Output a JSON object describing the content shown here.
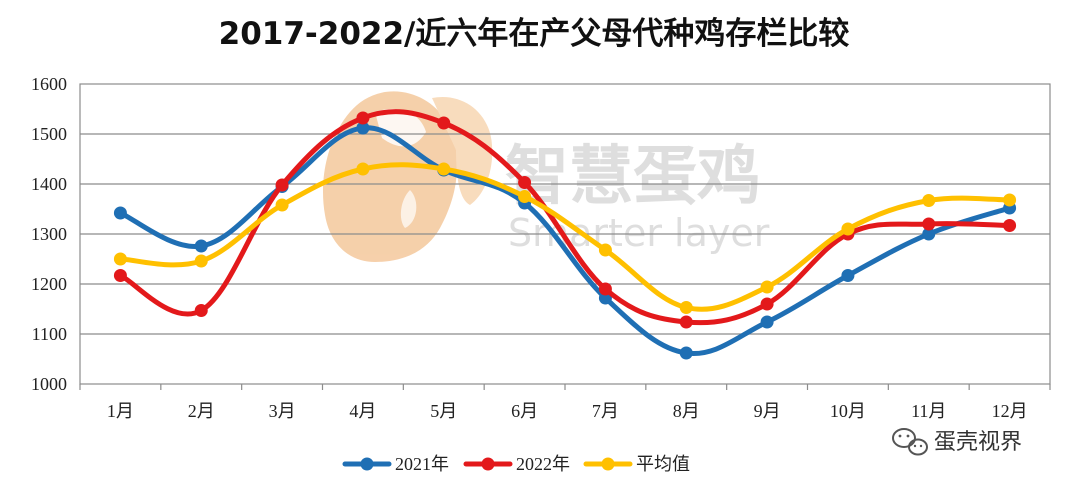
{
  "chart_data": {
    "type": "line",
    "title": "2017-2022/近六年在产父母代种鸡存栏比较",
    "categories": [
      "1月",
      "2月",
      "3月",
      "4月",
      "5月",
      "6月",
      "7月",
      "8月",
      "9月",
      "10月",
      "11月",
      "12月"
    ],
    "ylim": [
      1000,
      1600
    ],
    "yticks": [
      1000,
      1100,
      1200,
      1300,
      1400,
      1500,
      1600
    ],
    "ytick_labels": [
      "1000",
      "1100",
      "1200",
      "1300",
      "1400",
      "1500",
      "1600"
    ],
    "grid": true,
    "legend_position": "bottom",
    "series": [
      {
        "name": "2021年",
        "color": "#1f6fb4",
        "values": [
          1342,
          1276,
          1395,
          1512,
          1428,
          1362,
          1172,
          1062,
          1124,
          1217,
          1300,
          1352
        ]
      },
      {
        "name": "2022年",
        "color": "#e3191b",
        "values": [
          1217,
          1147,
          1398,
          1532,
          1522,
          1403,
          1190,
          1124,
          1160,
          1300,
          1320,
          1317
        ]
      },
      {
        "name": "平均值",
        "color": "#ffc000",
        "values": [
          1250,
          1246,
          1358,
          1430,
          1430,
          1375,
          1268,
          1153,
          1194,
          1310,
          1367,
          1368
        ]
      }
    ]
  },
  "watermark": {
    "cn": "智慧蛋鸡",
    "en": "Smarter layer"
  },
  "wechat_label": "蛋壳视界",
  "icons": [
    "watermark-logo-icon",
    "wechat-icon"
  ]
}
